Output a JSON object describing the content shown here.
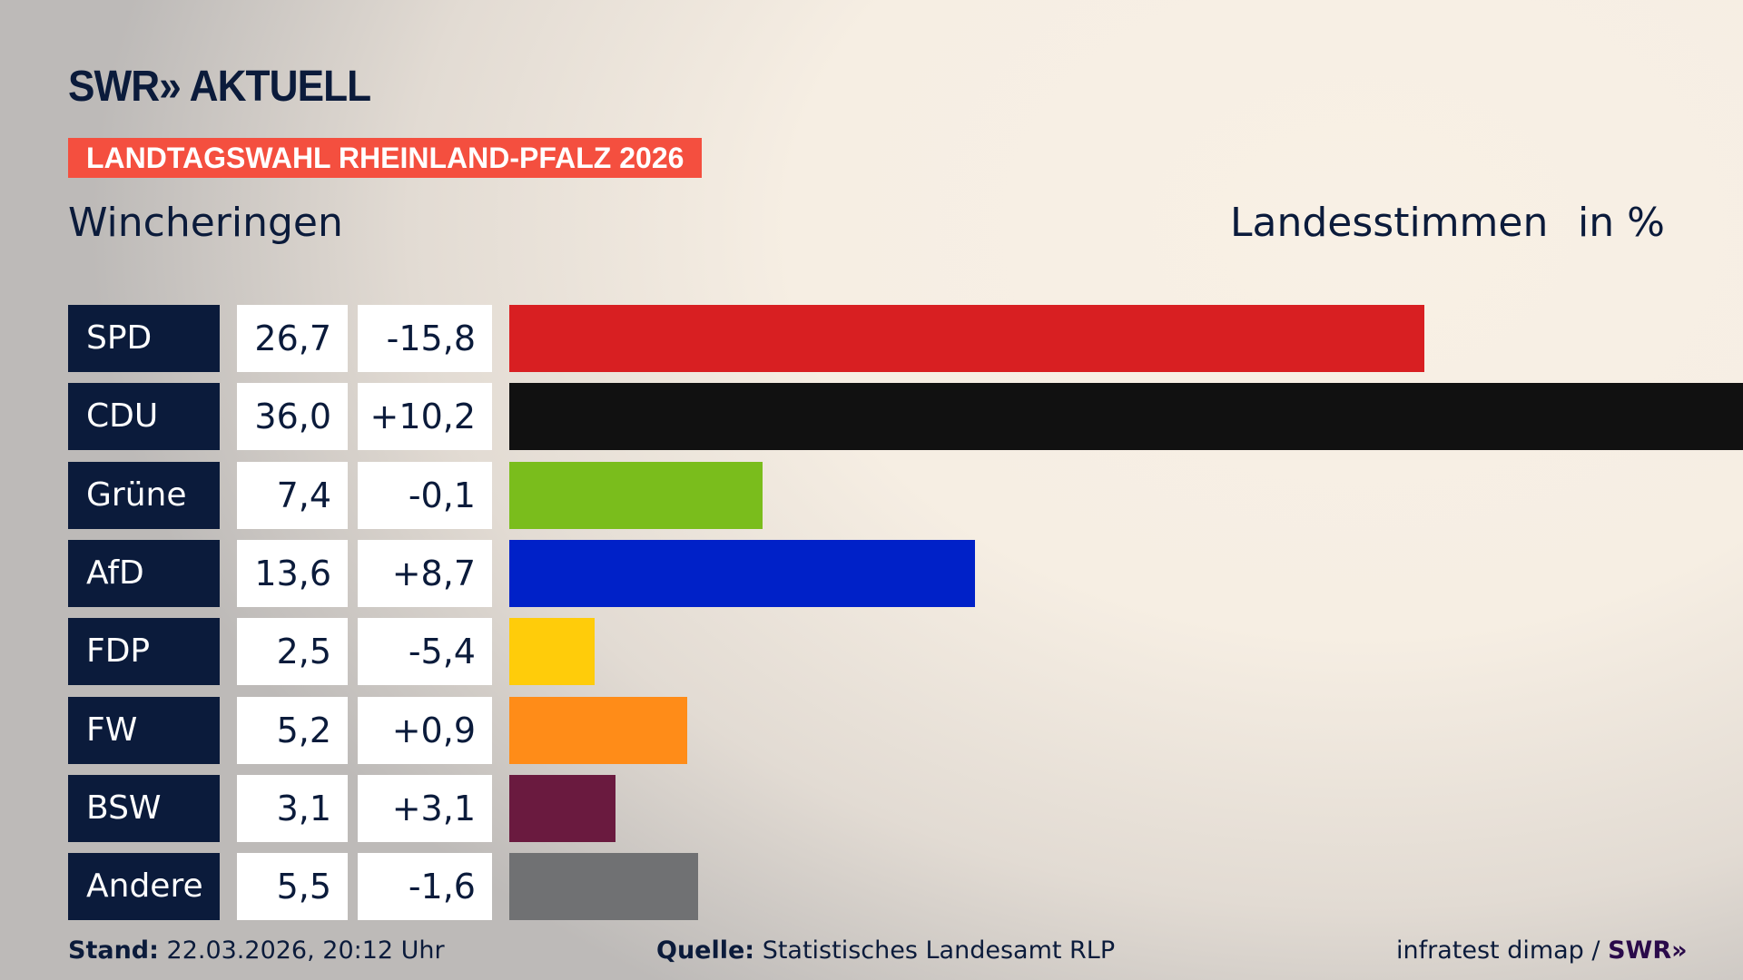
{
  "logo": "SWR» AKTUELL",
  "banner": "LANDTAGSWAHL RHEINLAND-PFALZ 2026",
  "region": "Wincheringen",
  "header": {
    "label": "Landesstimmen",
    "unit": "in %"
  },
  "chart_data": {
    "type": "bar",
    "orientation": "horizontal",
    "categories": [
      "SPD",
      "CDU",
      "Grüne",
      "AfD",
      "FDP",
      "FW",
      "BSW",
      "Andere"
    ],
    "values": [
      "26,7",
      "36,0",
      "7,4",
      "13,6",
      "2,5",
      "5,2",
      "3,1",
      "5,5"
    ],
    "diffs": [
      "-15,8",
      "+10,2",
      "-0,1",
      "+8,7",
      "-5,4",
      "+0,9",
      "+3,1",
      "-1,6"
    ],
    "numeric_values": [
      26.7,
      36.0,
      7.4,
      13.6,
      2.5,
      5.2,
      3.1,
      5.5
    ],
    "colors": [
      "#d81f22",
      "#111111",
      "#7abd1c",
      "#0021c8",
      "#ffcc0a",
      "#ff8c18",
      "#6a1a3f",
      "#707173"
    ]
  },
  "footer": {
    "stand_label": "Stand:",
    "stand_value": "22.03.2026, 20:12 Uhr",
    "source_label": "Quelle:",
    "source_value": "Statistisches Landesamt RLP",
    "credit": "infratest dimap / ",
    "credit_logo": "SWR»"
  }
}
